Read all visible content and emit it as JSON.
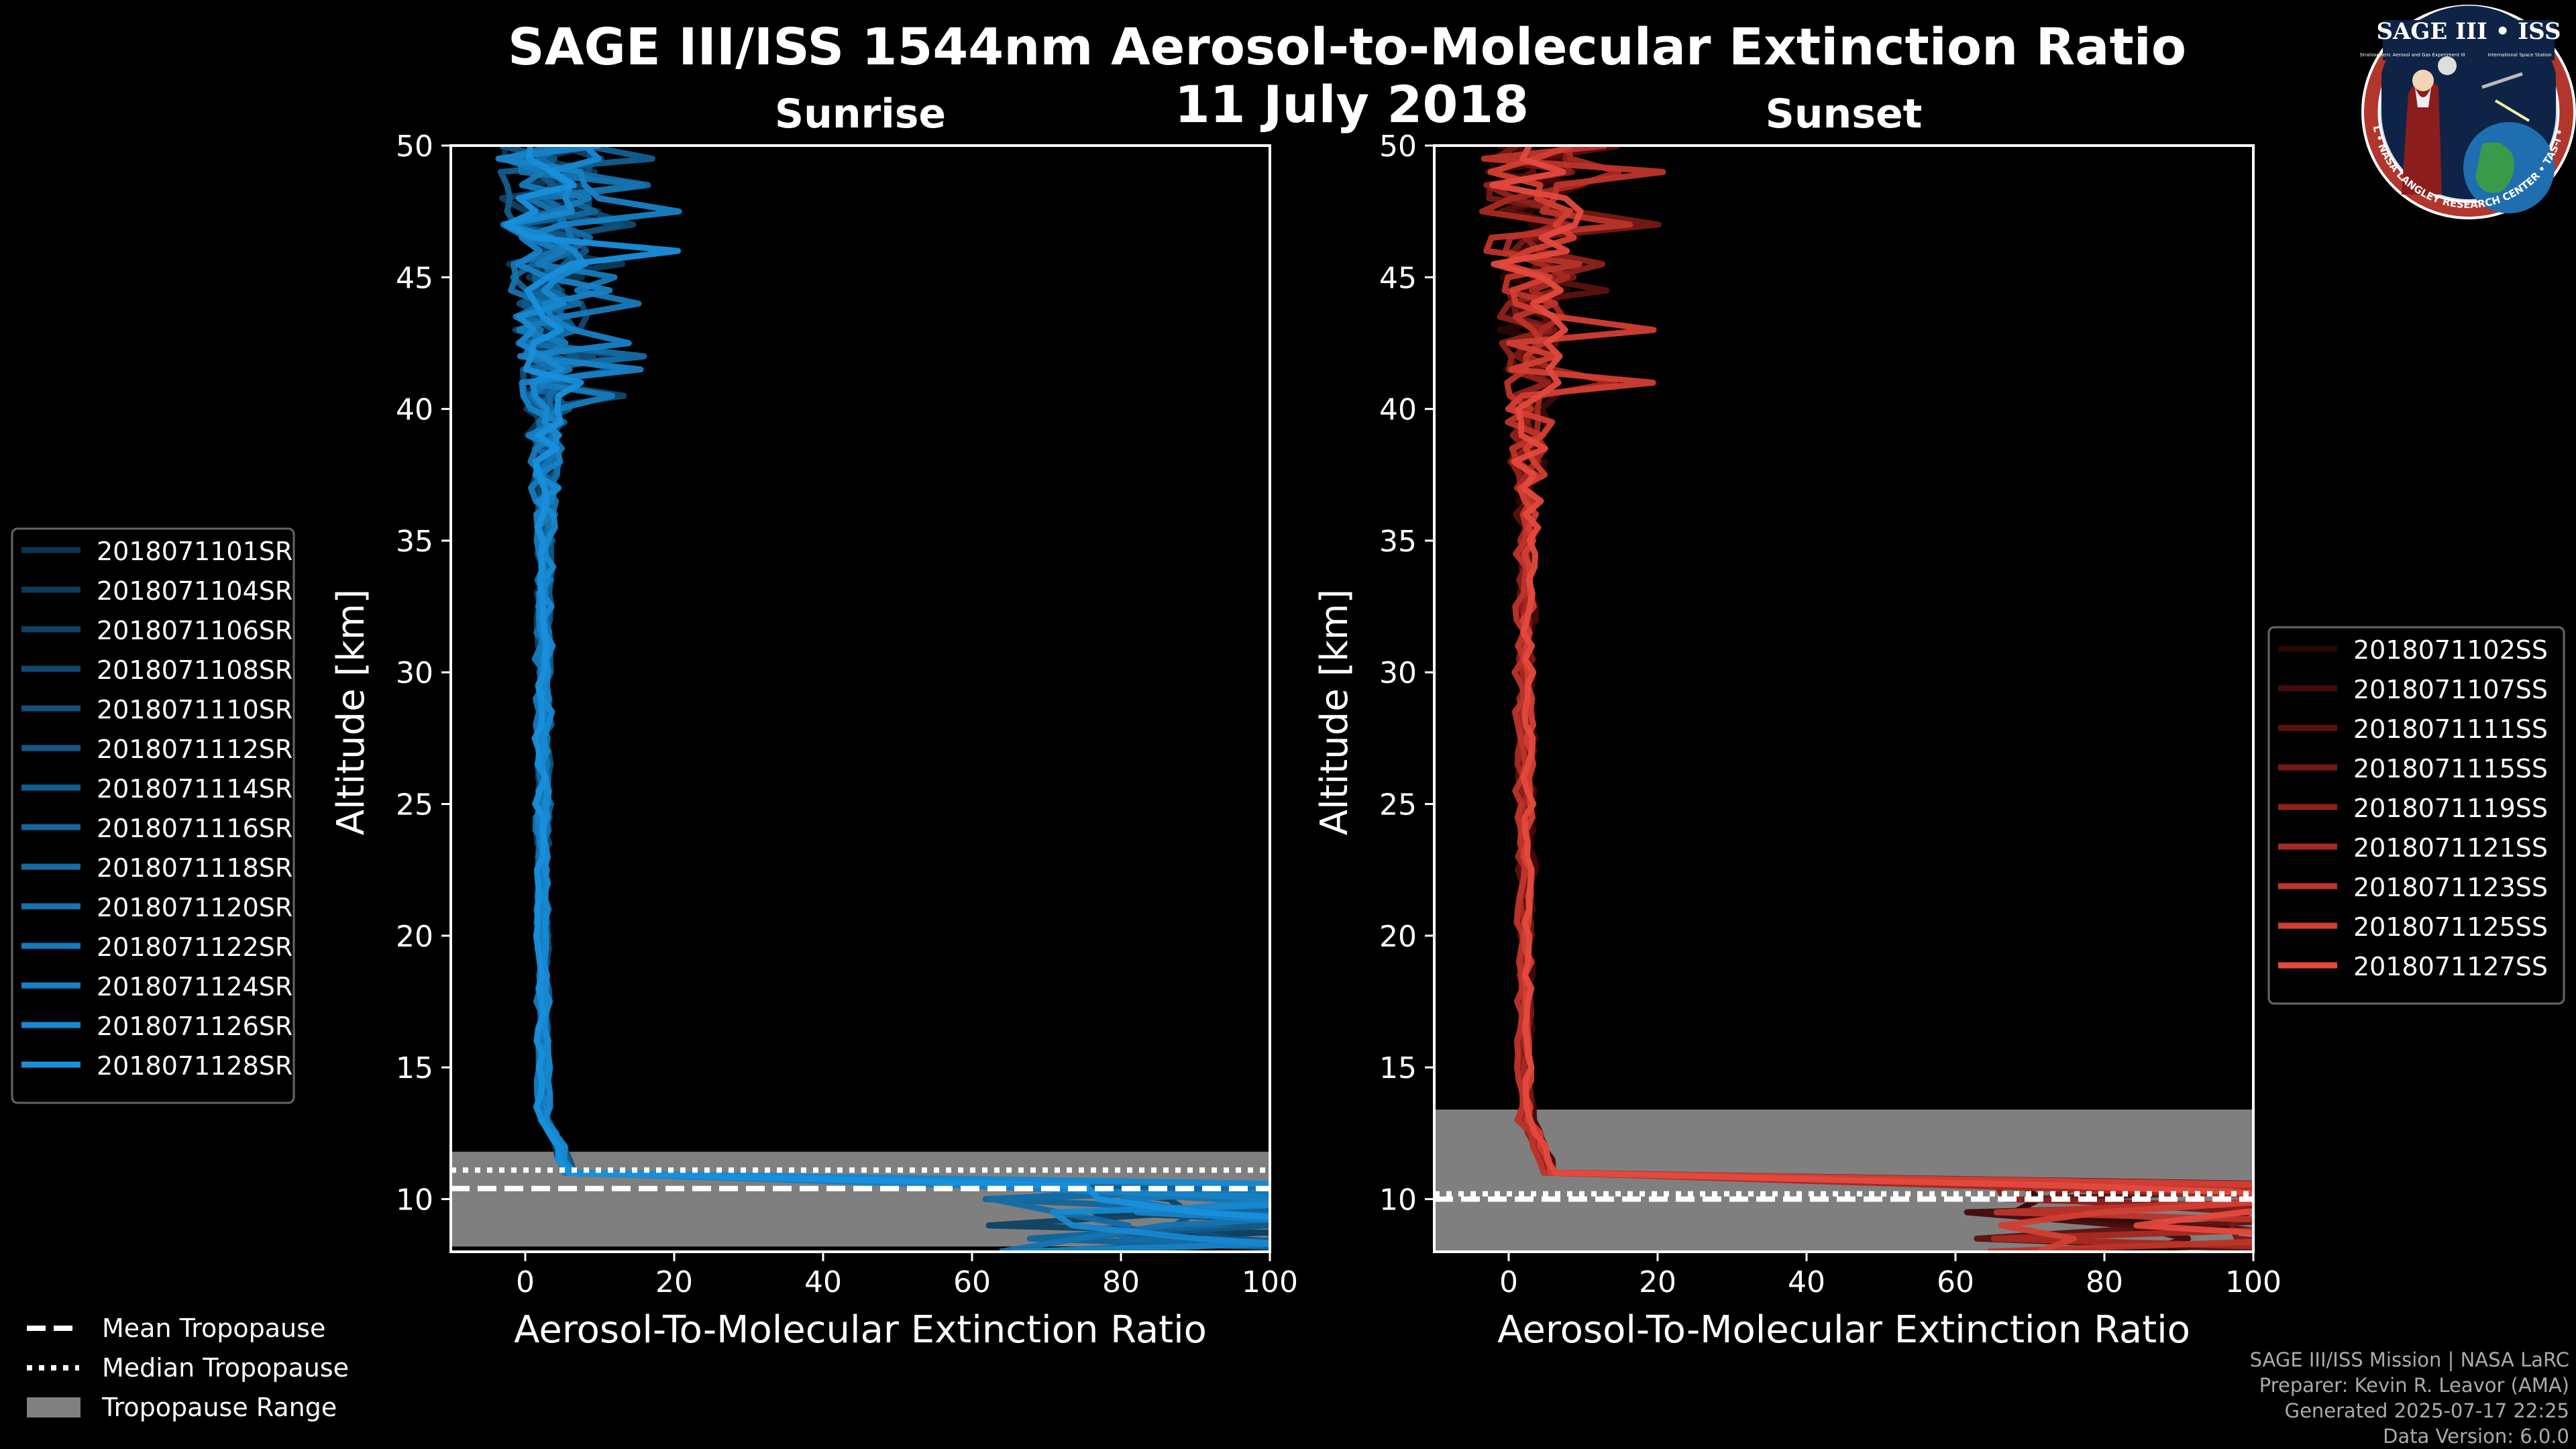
{
  "title_line1": "SAGE III/ISS 1544nm Aerosol-to-Molecular Extinction Ratio",
  "title_line2": "11 July 2018",
  "logo": {
    "top_text": "SAGE III • ISS",
    "left_small": "Stratospheric Aerosol and Gas Experiment III",
    "right_small": "International Space Station",
    "ring_text": "BALL • NASA LANGLEY RESEARCH CENTER • TAS-I • ESA"
  },
  "footer": {
    "line1": "SAGE III/ISS Mission | NASA LaRC",
    "line2": "Preparer: Kevin R. Leavor (AMA)",
    "line3": "Generated 2025-07-17 22:25",
    "line4": "Data Version: 6.0.0"
  },
  "tropopause_legend": [
    {
      "style": "dashed",
      "label": "Mean Tropopause"
    },
    {
      "style": "dotted",
      "label": "Median Tropopause"
    },
    {
      "style": "range",
      "label": "Tropopause Range"
    }
  ],
  "chart_data": [
    {
      "type": "line",
      "title": "Sunrise",
      "xlabel": "Aerosol-To-Molecular Extinction Ratio",
      "ylabel": "Altitude [km]",
      "xlim": [
        -10,
        100
      ],
      "ylim": [
        8,
        50
      ],
      "xticks": [
        0,
        20,
        40,
        60,
        80,
        100
      ],
      "yticks": [
        10,
        15,
        20,
        25,
        30,
        35,
        40,
        45,
        50
      ],
      "legend_position": "outside-left",
      "tropopause": {
        "mean": 10.4,
        "median": 11.1,
        "range": [
          8.2,
          11.8
        ]
      },
      "series": [
        {
          "name": "2018071101SR",
          "color": "#0c3550"
        },
        {
          "name": "2018071104SR",
          "color": "#0d3b5a"
        },
        {
          "name": "2018071106SR",
          "color": "#0e4264"
        },
        {
          "name": "2018071108SR",
          "color": "#0f496f"
        },
        {
          "name": "2018071110SR",
          "color": "#10507a"
        },
        {
          "name": "2018071112SR",
          "color": "#115784"
        },
        {
          "name": "2018071114SR",
          "color": "#125e8f"
        },
        {
          "name": "2018071116SR",
          "color": "#13659a"
        },
        {
          "name": "2018071118SR",
          "color": "#146ca5"
        },
        {
          "name": "2018071120SR",
          "color": "#1573b0"
        },
        {
          "name": "2018071122SR",
          "color": "#167abb"
        },
        {
          "name": "2018071124SR",
          "color": "#1781c6"
        },
        {
          "name": "2018071126SR",
          "color": "#1788d1"
        },
        {
          "name": "2018071128SR",
          "color": "#188fdc"
        }
      ]
    },
    {
      "type": "line",
      "title": "Sunset",
      "xlabel": "Aerosol-To-Molecular Extinction Ratio",
      "ylabel": "Altitude [km]",
      "xlim": [
        -10,
        100
      ],
      "ylim": [
        8,
        50
      ],
      "xticks": [
        0,
        20,
        40,
        60,
        80,
        100
      ],
      "yticks": [
        10,
        15,
        20,
        25,
        30,
        35,
        40,
        45,
        50
      ],
      "legend_position": "outside-right",
      "tropopause": {
        "mean": 10.0,
        "median": 10.2,
        "range": [
          8.0,
          13.4
        ]
      },
      "series": [
        {
          "name": "2018071102SS",
          "color": "#2a0606"
        },
        {
          "name": "2018071107SS",
          "color": "#420b0a"
        },
        {
          "name": "2018071111SS",
          "color": "#5b120f"
        },
        {
          "name": "2018071115SS",
          "color": "#751915"
        },
        {
          "name": "2018071119SS",
          "color": "#8e211b"
        },
        {
          "name": "2018071121SS",
          "color": "#a62a22"
        },
        {
          "name": "2018071123SS",
          "color": "#bd342a"
        },
        {
          "name": "2018071125SS",
          "color": "#d23e33"
        },
        {
          "name": "2018071127SS",
          "color": "#e4493e"
        }
      ]
    }
  ]
}
